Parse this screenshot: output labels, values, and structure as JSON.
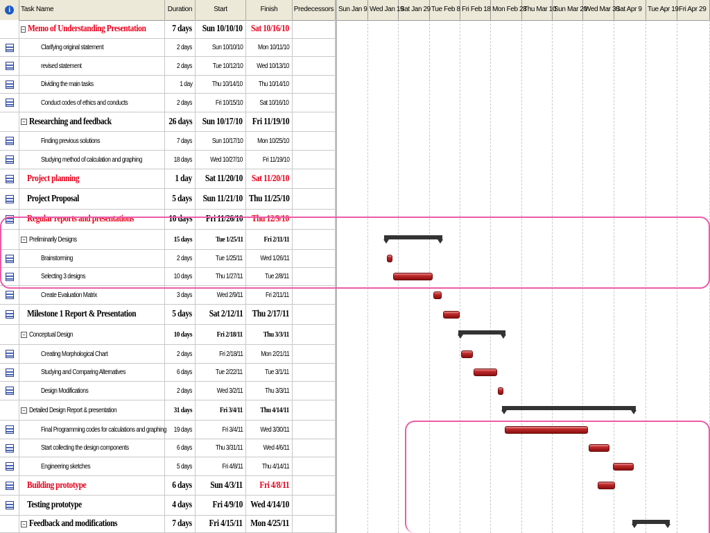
{
  "columns": {
    "indicator": "i",
    "name": "Task Name",
    "duration": "Duration",
    "start": "Start",
    "finish": "Finish",
    "predecessors": "Predecessors"
  },
  "timescale": [
    "Sun Jan 9",
    "Wed Jan 19",
    "Sat Jan 29",
    "Tue Feb 8",
    "Fri Feb 18",
    "Mon Feb 28",
    "Thu Mar 10",
    "Sun Mar 20",
    "Wed Mar 30",
    "Sat Apr 9",
    "Tue Apr 19",
    "Fri Apr 29"
  ],
  "tasks": [
    {
      "name": "Memo of Understanding Presentation",
      "duration": "7 days",
      "start": "Sun 10/10/10",
      "finish": "Sat 10/16/10",
      "style": "big",
      "summary": true,
      "nameRed": true,
      "finRed": true,
      "icon": "none"
    },
    {
      "name": "Clarifying original statement",
      "duration": "2 days",
      "start": "Sun 10/10/10",
      "finish": "Mon 10/11/10",
      "style": "sub",
      "icon": "task"
    },
    {
      "name": "revised statement",
      "duration": "2 days",
      "start": "Tue 10/12/10",
      "finish": "Wed 10/13/10",
      "style": "sub",
      "icon": "task"
    },
    {
      "name": "Dividing the main tasks",
      "duration": "1 day",
      "start": "Thu 10/14/10",
      "finish": "Thu 10/14/10",
      "style": "sub",
      "icon": "task"
    },
    {
      "name": "Conduct codes of ethics and conducts",
      "duration": "2 days",
      "start": "Fri 10/15/10",
      "finish": "Sat 10/16/10",
      "style": "sub",
      "icon": "task"
    },
    {
      "name": "Researching and feedback",
      "duration": "26 days",
      "start": "Sun 10/17/10",
      "finish": "Fri 11/19/10",
      "style": "big",
      "summary": true,
      "icon": "none"
    },
    {
      "name": "Finding previous solutions",
      "duration": "7 days",
      "start": "Sun 10/17/10",
      "finish": "Mon 10/25/10",
      "style": "sub",
      "icon": "task"
    },
    {
      "name": "Studying method of calculation and graphing",
      "duration": "18 days",
      "start": "Wed 10/27/10",
      "finish": "Fri 11/19/10",
      "style": "sub",
      "icon": "task"
    },
    {
      "name": "Project planning",
      "duration": "1 day",
      "start": "Sat 11/20/10",
      "finish": "Sat 11/20/10",
      "style": "big",
      "nameRed": true,
      "finRed": true,
      "icon": "task"
    },
    {
      "name": "Project Proposal",
      "duration": "5 days",
      "start": "Sun 11/21/10",
      "finish": "Thu 11/25/10",
      "style": "big",
      "icon": "task"
    },
    {
      "name": "Regular reports and presentations",
      "duration": "10 days",
      "start": "Fri 11/26/10",
      "finish": "Thu 12/9/10",
      "style": "big",
      "nameRed": true,
      "finRed": true,
      "icon": "task"
    },
    {
      "name": "Preliminarily Designs",
      "duration": "15 days",
      "start": "Tue 1/25/11",
      "finish": "Fri 2/11/11",
      "style": "mid",
      "summary": true,
      "icon": "none"
    },
    {
      "name": "Brainstorming",
      "duration": "2 days",
      "start": "Tue 1/25/11",
      "finish": "Wed 1/26/11",
      "style": "sub",
      "icon": "task"
    },
    {
      "name": "Selecting 3 designs",
      "duration": "10 days",
      "start": "Thu 1/27/11",
      "finish": "Tue 2/8/11",
      "style": "sub",
      "icon": "task"
    },
    {
      "name": "Create Evaluation Matrix",
      "duration": "3 days",
      "start": "Wed 2/9/11",
      "finish": "Fri 2/11/11",
      "style": "sub",
      "icon": "task"
    },
    {
      "name": "Milestone 1 Report & Presentation",
      "duration": "5 days",
      "start": "Sat 2/12/11",
      "finish": "Thu 2/17/11",
      "style": "big",
      "icon": "task"
    },
    {
      "name": "Conceptual Design",
      "duration": "10 days",
      "start": "Fri 2/18/11",
      "finish": "Thu 3/3/11",
      "style": "mid",
      "summary": true,
      "icon": "none"
    },
    {
      "name": "Creating Morphological Chart",
      "duration": "2 days",
      "start": "Fri 2/18/11",
      "finish": "Mon 2/21/11",
      "style": "sub",
      "icon": "task"
    },
    {
      "name": "Studying and Comparing Alternatives",
      "duration": "6 days",
      "start": "Tue 2/22/11",
      "finish": "Tue 3/1/11",
      "style": "sub",
      "icon": "task"
    },
    {
      "name": "Design Modifications",
      "duration": "2 days",
      "start": "Wed 3/2/11",
      "finish": "Thu 3/3/11",
      "style": "sub",
      "icon": "task"
    },
    {
      "name": "Detailed Design Report & presentation",
      "duration": "31 days",
      "start": "Fri 3/4/11",
      "finish": "Thu 4/14/11",
      "style": "mid",
      "summary": true,
      "icon": "none"
    },
    {
      "name": "Final Programming codes for calculations and graphing",
      "duration": "19 days",
      "start": "Fri 3/4/11",
      "finish": "Wed 3/30/11",
      "style": "sub",
      "icon": "task"
    },
    {
      "name": "Start collecting the design components",
      "duration": "6 days",
      "start": "Thu 3/31/11",
      "finish": "Wed 4/6/11",
      "style": "sub",
      "icon": "task"
    },
    {
      "name": "Engineering sketches",
      "duration": "5 days",
      "start": "Fri 4/8/11",
      "finish": "Thu 4/14/11",
      "style": "sub",
      "icon": "task"
    },
    {
      "name": "Building prototype",
      "duration": "6 days",
      "start": "Sun 4/3/11",
      "finish": "Fri 4/8/11",
      "style": "big",
      "nameRed": true,
      "finRed": true,
      "icon": "task"
    },
    {
      "name": "Testing prototype",
      "duration": "4 days",
      "start": "Fri 4/9/10",
      "finish": "Wed 4/14/10",
      "style": "big",
      "icon": "task"
    },
    {
      "name": "Feedback and modifications",
      "duration": "7 days",
      "start": "Fri 4/15/11",
      "finish": "Mon 4/25/11",
      "style": "big",
      "summary": true,
      "icon": "none"
    }
  ],
  "colors": {
    "critical_text": "#e8001c",
    "bar": "#c0292b",
    "summary": "#333333",
    "highlight": "#ec5aa8"
  }
}
